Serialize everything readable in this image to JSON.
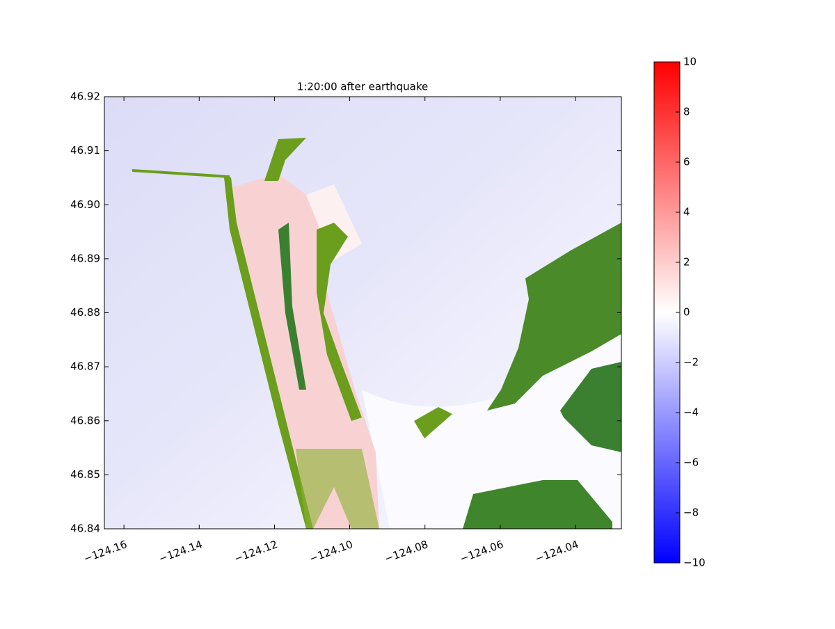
{
  "chart_data": {
    "type": "heatmap",
    "title": "1:20:00 after earthquake",
    "xlim": [
      -124.1652,
      -124.0278
    ],
    "xticks": [
      {
        "value": -124.16,
        "label": "−124.16"
      },
      {
        "value": -124.14,
        "label": "−124.14"
      },
      {
        "value": -124.12,
        "label": "−124.12"
      },
      {
        "value": -124.1,
        "label": "−124.10"
      },
      {
        "value": -124.08,
        "label": "−124.08"
      },
      {
        "value": -124.06,
        "label": "−124.06"
      },
      {
        "value": -124.04,
        "label": "−124.04"
      }
    ],
    "ylim": [
      46.84,
      46.92
    ],
    "yticks": [
      46.84,
      46.85,
      46.86,
      46.87,
      46.88,
      46.89,
      {
        "value": 46.9,
        "label": "46.90"
      },
      46.91,
      46.92
    ],
    "colorbar": {
      "lim": [
        -10,
        10
      ],
      "colormap": [
        "#0000ff",
        "#ffffff",
        "#ff0000"
      ],
      "ticks": [
        {
          "value": -10,
          "label": "−10"
        },
        {
          "value": -8,
          "label": "−8"
        },
        {
          "value": -6,
          "label": "−6"
        },
        {
          "value": -4,
          "label": "−4"
        },
        {
          "value": -2,
          "label": "−2"
        },
        0,
        2,
        4,
        6,
        8,
        10
      ]
    }
  }
}
